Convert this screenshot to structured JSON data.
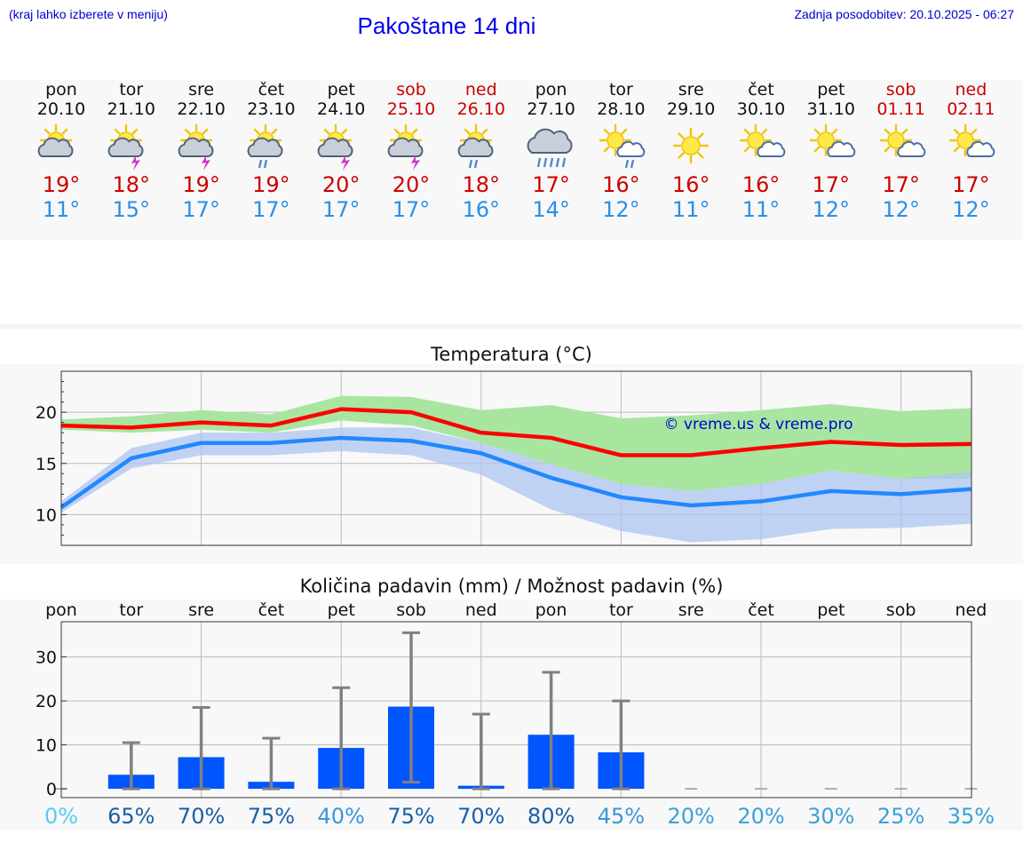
{
  "header": {
    "location_hint": "(kraj lahko izberete v meniju)",
    "title": "Pakoštane 14 dni",
    "updated": "Zadnja posodobitev: 20.10.2025 - 06:27"
  },
  "forecast": {
    "days": [
      {
        "name": "pon",
        "date": "20.10",
        "weekend": false,
        "icon": "partly-cloudy-icon",
        "tmax": "19°",
        "tmin": "11°"
      },
      {
        "name": "tor",
        "date": "21.10",
        "weekend": false,
        "icon": "thunderstorm-sun-icon",
        "tmax": "18°",
        "tmin": "15°"
      },
      {
        "name": "sre",
        "date": "22.10",
        "weekend": false,
        "icon": "thunderstorm-sun-icon",
        "tmax": "19°",
        "tmin": "17°"
      },
      {
        "name": "čet",
        "date": "23.10",
        "weekend": false,
        "icon": "rain-sun-icon",
        "tmax": "19°",
        "tmin": "17°"
      },
      {
        "name": "pet",
        "date": "24.10",
        "weekend": false,
        "icon": "thunderstorm-sun-icon",
        "tmax": "20°",
        "tmin": "17°"
      },
      {
        "name": "sob",
        "date": "25.10",
        "weekend": true,
        "icon": "thunderstorm-sun-icon",
        "tmax": "20°",
        "tmin": "17°"
      },
      {
        "name": "ned",
        "date": "26.10",
        "weekend": true,
        "icon": "rain-sun-icon",
        "tmax": "18°",
        "tmin": "16°"
      },
      {
        "name": "pon",
        "date": "27.10",
        "weekend": false,
        "icon": "heavy-rain-icon",
        "tmax": "17°",
        "tmin": "14°"
      },
      {
        "name": "tor",
        "date": "28.10",
        "weekend": false,
        "icon": "rain-sun-small-icon",
        "tmax": "16°",
        "tmin": "12°"
      },
      {
        "name": "sre",
        "date": "29.10",
        "weekend": false,
        "icon": "sun-icon",
        "tmax": "16°",
        "tmin": "11°"
      },
      {
        "name": "čet",
        "date": "30.10",
        "weekend": false,
        "icon": "sun-small-cloud-icon",
        "tmax": "16°",
        "tmin": "11°"
      },
      {
        "name": "pet",
        "date": "31.10",
        "weekend": false,
        "icon": "sun-small-cloud-icon",
        "tmax": "17°",
        "tmin": "12°"
      },
      {
        "name": "sob",
        "date": "01.11",
        "weekend": true,
        "icon": "sun-small-cloud-icon",
        "tmax": "17°",
        "tmin": "12°"
      },
      {
        "name": "ned",
        "date": "02.11",
        "weekend": true,
        "icon": "sun-small-cloud-icon",
        "tmax": "17°",
        "tmin": "12°"
      }
    ]
  },
  "chart_data": [
    {
      "type": "line",
      "title": "Temperatura (°C)",
      "ylim": [
        7,
        24
      ],
      "yticks": [
        10,
        15,
        20
      ],
      "watermark": "© vreme.us & vreme.pro",
      "series": [
        {
          "name": "max",
          "color": "#ff0000",
          "values": [
            18.7,
            18.5,
            19.0,
            18.7,
            20.3,
            20.0,
            18.0,
            17.5,
            15.8,
            15.8,
            16.5,
            17.1,
            16.8,
            16.9
          ]
        },
        {
          "name": "min",
          "color": "#2288ff",
          "values": [
            10.7,
            15.5,
            17.0,
            17.0,
            17.5,
            17.2,
            16.0,
            13.6,
            11.7,
            10.9,
            11.3,
            12.3,
            12.0,
            12.5
          ]
        }
      ],
      "bands": [
        {
          "name": "max-range",
          "color": "#a8e6a0",
          "upper": [
            19.3,
            19.6,
            20.2,
            19.8,
            21.6,
            21.5,
            20.2,
            20.7,
            19.4,
            19.7,
            20.2,
            20.8,
            20.1,
            20.4
          ],
          "lower": [
            18.3,
            18.0,
            18.3,
            18.0,
            19.2,
            18.7,
            17.0,
            14.9,
            13.0,
            12.3,
            13.0,
            14.3,
            13.5,
            13.5
          ]
        },
        {
          "name": "min-range",
          "color": "#aec6f2",
          "upper": [
            11.3,
            16.5,
            18.0,
            18.0,
            18.5,
            18.5,
            17.0,
            14.9,
            13.0,
            12.3,
            13.0,
            14.3,
            13.5,
            14.2
          ],
          "lower": [
            10.2,
            14.5,
            15.8,
            15.8,
            16.2,
            15.8,
            13.9,
            10.5,
            8.4,
            7.3,
            7.6,
            8.6,
            8.7,
            9.1
          ]
        }
      ]
    },
    {
      "type": "bar",
      "title": "Količina padavin (mm) / Možnost padavin (%)",
      "categories": [
        "pon",
        "tor",
        "sre",
        "čet",
        "pet",
        "sob",
        "ned",
        "pon",
        "tor",
        "sre",
        "čet",
        "pet",
        "sob",
        "ned"
      ],
      "ylim": [
        -2,
        38
      ],
      "yticks": [
        0,
        10,
        20,
        30
      ],
      "values": [
        0,
        3.2,
        7.2,
        1.6,
        9.3,
        18.7,
        0.7,
        12.3,
        8.3,
        0,
        0,
        0,
        0,
        0
      ],
      "error_low": [
        0,
        0,
        0,
        0,
        0,
        1.5,
        0,
        0,
        0,
        0,
        0,
        0,
        0,
        0
      ],
      "error_high": [
        0,
        10.5,
        18.5,
        11.5,
        23.0,
        35.5,
        17.0,
        26.5,
        20.0,
        0,
        0,
        0,
        0,
        0
      ],
      "probabilities": [
        "0%",
        "65%",
        "70%",
        "75%",
        "40%",
        "75%",
        "70%",
        "80%",
        "45%",
        "20%",
        "20%",
        "30%",
        "25%",
        "35%"
      ],
      "probability_colors": [
        "#55ccee",
        "#1a5ea8",
        "#1a5ea8",
        "#1a5ea8",
        "#3a96d6",
        "#1a5ea8",
        "#1a5ea8",
        "#1a5ea8",
        "#3a96d6",
        "#3aa0d8",
        "#3aa0d8",
        "#3aa0d8",
        "#3aa0d8",
        "#3aa0d8"
      ],
      "bar_color": "#0055ff",
      "error_color": "#808080"
    }
  ]
}
